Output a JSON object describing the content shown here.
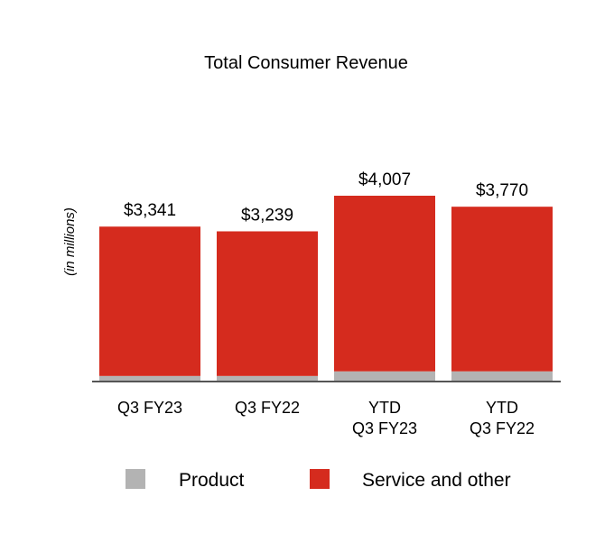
{
  "chart_data": {
    "type": "bar",
    "stacked": true,
    "title": "Total Consumer Revenue",
    "ylabel": "(in millions)",
    "categories": [
      [
        "Q3 FY23"
      ],
      [
        "Q3 FY22"
      ],
      [
        "YTD",
        "Q3 FY23"
      ],
      [
        "YTD",
        "Q3 FY22"
      ]
    ],
    "totals_labels": [
      "$3,341",
      "$3,239",
      "$4,007",
      "$3,770"
    ],
    "series": [
      {
        "name": "Product",
        "color": "#b3b3b3",
        "values": [
          120,
          120,
          220,
          220
        ]
      },
      {
        "name": "Service and other",
        "color": "#d52b1e",
        "values": [
          3221,
          3119,
          3787,
          3550
        ]
      }
    ],
    "ylim": [
      0,
      4007
    ],
    "legend_position": "bottom",
    "grid": false
  }
}
